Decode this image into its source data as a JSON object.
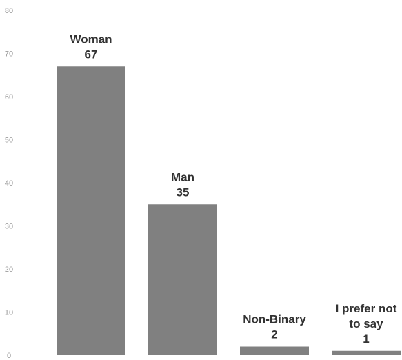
{
  "chart_data": {
    "type": "bar",
    "categories": [
      [
        "Woman"
      ],
      [
        "Man"
      ],
      [
        "Non-Binary"
      ],
      [
        "I prefer not",
        "to say"
      ]
    ],
    "values": [
      67,
      35,
      2,
      1
    ],
    "ylim": [
      0,
      80
    ],
    "yticks": [
      0,
      10,
      20,
      30,
      40,
      50,
      60,
      70,
      80
    ],
    "grid": false,
    "legend": "none",
    "bar_color": "#808080",
    "label_color": "#333333",
    "tick_color": "#9a9a9a"
  }
}
